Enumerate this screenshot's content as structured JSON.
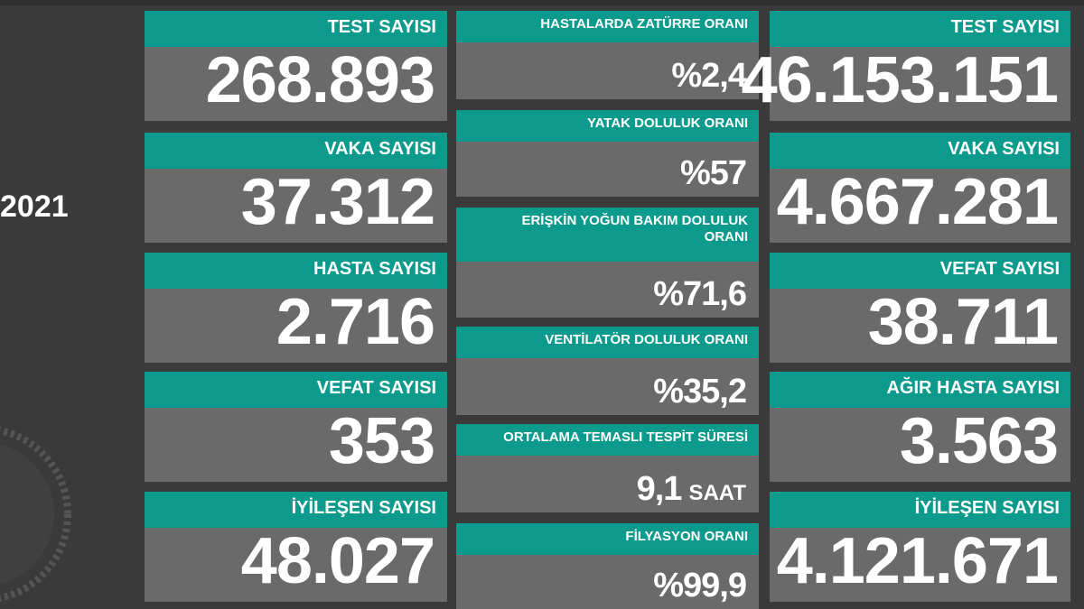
{
  "side_text": "2021",
  "columns": [
    {
      "cards": [
        {
          "label": "TEST SAYISI",
          "value": "268.893"
        },
        {
          "label": "VAKA SAYISI",
          "value": "37.312"
        },
        {
          "label": "HASTA SAYISI",
          "value": "2.716"
        },
        {
          "label": "VEFAT SAYISI",
          "value": "353"
        },
        {
          "label": "İYİLEŞEN SAYISI",
          "value": "48.027"
        }
      ]
    },
    {
      "cards": [
        {
          "label": "HASTALARDA ZATÜRRE ORANI",
          "value": "%2,4"
        },
        {
          "label": "YATAK DOLULUK ORANI",
          "value": "%57"
        },
        {
          "label": "ERİŞKİN YOĞUN BAKIM DOLULUK ORANI",
          "value": "%71,6"
        },
        {
          "label": "VENTİLATÖR DOLULUK ORANI",
          "value": "%35,2"
        },
        {
          "label": "ORTALAMA TEMASLI TESPİT SÜRESİ",
          "value": "9,1",
          "unit": "SAAT"
        },
        {
          "label": "FİLYASYON ORANI",
          "value": "%99,9"
        }
      ]
    },
    {
      "cards": [
        {
          "label": "TEST SAYISI",
          "value": "46.153.151"
        },
        {
          "label": "VAKA SAYISI",
          "value": "4.667.281"
        },
        {
          "label": "VEFAT SAYISI",
          "value": "38.711"
        },
        {
          "label": "AĞIR HASTA SAYISI",
          "value": "3.563"
        },
        {
          "label": "İYİLEŞEN SAYISI",
          "value": "4.121.671"
        }
      ]
    }
  ]
}
